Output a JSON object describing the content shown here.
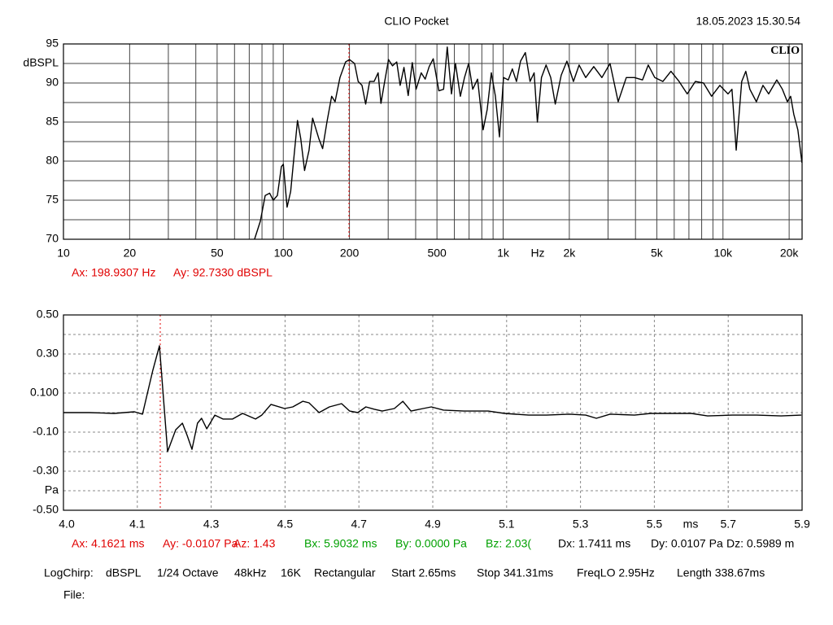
{
  "header": {
    "title": "CLIO Pocket",
    "timestamp": "18.05.2023 15.30.54"
  },
  "chart_data": [
    {
      "type": "line",
      "logo": "CLIO",
      "ylabel": "dBSPL",
      "xlabel": "Hz",
      "xlog": true,
      "grid": true,
      "grid_style": "solid",
      "minor_grid": true,
      "xlim": [
        10,
        22900
      ],
      "xticks": [
        10,
        20,
        50,
        100,
        200,
        500,
        {
          "value": 1000,
          "label": "1k"
        },
        {
          "value": 2000,
          "label": "2k"
        },
        {
          "value": 5000,
          "label": "5k"
        },
        {
          "value": 10000,
          "label": "10k"
        },
        {
          "value": 20000,
          "label": "20k"
        }
      ],
      "ylim": [
        70,
        95
      ],
      "yticks": [
        70,
        75,
        80,
        85,
        90,
        95
      ],
      "cursor_x": 198.9307,
      "cursor_color": "#e00000",
      "cursor_readouts": [
        {
          "text": "Ax: 198.9307 Hz",
          "color": "#e00000"
        },
        {
          "text": "Ay: 92.7330 dBSPL",
          "color": "#e00000"
        }
      ],
      "x": [
        74,
        78.6,
        82.7,
        86.7,
        90,
        94,
        98,
        100,
        104,
        108,
        112,
        116,
        120,
        125,
        131,
        136,
        145,
        151,
        158,
        166,
        172,
        181,
        192,
        200,
        211,
        219,
        228,
        237,
        247,
        259,
        270,
        278,
        288,
        301,
        314,
        328,
        340,
        354,
        370,
        386,
        402,
        424,
        442,
        461,
        481,
        510,
        536,
        557,
        582,
        607,
        639,
        667,
        697,
        727,
        765,
        811,
        846,
        884,
        922,
        962,
        1004,
        1055,
        1101,
        1150,
        1200,
        1262,
        1326,
        1384,
        1431,
        1494,
        1568,
        1646,
        1727,
        1837,
        1950,
        2088,
        2217,
        2374,
        2584,
        2813,
        3063,
        3335,
        3631,
        3954,
        4305,
        4573,
        4894,
        5328,
        5801,
        6316,
        6877,
        7487,
        8151,
        8875,
        9680,
        10540,
        10990,
        11480,
        12170,
        12700,
        13250,
        14190,
        15200,
        16130,
        17570,
        18640,
        19620,
        20300,
        20990,
        21900,
        22860
      ],
      "series": [
        {
          "color": "#000000",
          "values": [
            70,
            72.3,
            75.6,
            75.9,
            75,
            75.6,
            79.3,
            79.6,
            74.1,
            76.1,
            80.8,
            85.2,
            82.9,
            78.8,
            81.4,
            85.5,
            82.9,
            81.6,
            85,
            88.3,
            87.6,
            90.7,
            92.7,
            93,
            92.5,
            90.2,
            89.7,
            87.3,
            90.2,
            90.2,
            91.3,
            87.4,
            89.9,
            93,
            92.2,
            92.7,
            89.7,
            92,
            88.4,
            92.6,
            89.2,
            91.3,
            90.5,
            92.1,
            93.1,
            89,
            89.2,
            94.6,
            88.6,
            92.5,
            88.3,
            90.7,
            92.5,
            89.2,
            90.5,
            84,
            86.6,
            91.3,
            88.3,
            83.1,
            90.7,
            90.4,
            91.8,
            90.2,
            92.8,
            93.9,
            90.2,
            91.3,
            85,
            90.7,
            92.3,
            90.7,
            87.3,
            91,
            92.8,
            90.2,
            92.3,
            90.7,
            92.1,
            90.7,
            92.5,
            87.6,
            90.7,
            90.7,
            90.4,
            92.3,
            90.7,
            90.2,
            91.5,
            90.2,
            88.6,
            90.2,
            90,
            88.3,
            89.7,
            88.6,
            89.2,
            81.4,
            90.2,
            91.5,
            89.2,
            87.6,
            89.7,
            88.6,
            90.4,
            89.2,
            87.6,
            88.3,
            86,
            84,
            79.8
          ]
        }
      ]
    },
    {
      "type": "line",
      "ylabel": "Pa",
      "xlabel": "ms",
      "axis_start_label": "4.0",
      "grid": true,
      "grid_style": "dashed",
      "minor_grid": true,
      "xlim": [
        3.9,
        5.9
      ],
      "xticks": [
        4.1,
        4.3,
        4.5,
        4.7,
        4.9,
        5.1,
        5.3,
        5.5,
        5.7,
        5.9
      ],
      "ylim": [
        -0.5,
        0.5
      ],
      "yticks": [
        {
          "value": 0.5,
          "label": "0.50"
        },
        {
          "value": 0.3,
          "label": "0.30"
        },
        {
          "value": 0.1,
          "label": "0.100"
        },
        {
          "value": -0.1,
          "label": "-0.10"
        },
        {
          "value": -0.3,
          "label": "-0.30"
        },
        {
          "value": -0.5,
          "label": "-0.50"
        }
      ],
      "cursor_x": 4.1621,
      "cursor_color": "#e00000",
      "cursor_readouts": [
        {
          "text": "Ax: 4.1621 ms",
          "color": "#e00000"
        },
        {
          "text": "Ay: -0.0107 Pa",
          "color": "#e00000"
        },
        {
          "text": "Az: 1.43",
          "color": "#e00000"
        },
        {
          "text": "Bx: 5.9032 ms",
          "color": "#00a000"
        },
        {
          "text": "By: 0.0000 Pa",
          "color": "#00a000"
        },
        {
          "text": "Bz: 2.03(",
          "color": "#00a000"
        },
        {
          "text": "Dx: 1.7411 ms",
          "color": "#000000"
        },
        {
          "text": "Dy: 0.0107 Pa",
          "color": "#000000"
        },
        {
          "text": "Dz: 0.5989 m",
          "color": "#000000"
        }
      ],
      "x": [
        3.9,
        3.97,
        4.037,
        4.092,
        4.114,
        4.129,
        4.142,
        4.16,
        4.182,
        4.204,
        4.222,
        4.235,
        4.248,
        4.263,
        4.274,
        4.288,
        4.31,
        4.332,
        4.358,
        4.385,
        4.42,
        4.437,
        4.462,
        4.499,
        4.521,
        4.548,
        4.565,
        4.592,
        4.62,
        4.653,
        4.675,
        4.697,
        4.719,
        4.742,
        4.763,
        4.796,
        4.819,
        4.841,
        4.874,
        4.896,
        4.929,
        4.984,
        5.05,
        5.094,
        5.16,
        5.208,
        5.27,
        5.314,
        5.343,
        5.38,
        5.446,
        5.49,
        5.534,
        5.6,
        5.644,
        5.711,
        5.777,
        5.843,
        5.898
      ],
      "series": [
        {
          "color": "#000000",
          "values": [
            0,
            0,
            -0.004,
            0.004,
            -0.008,
            0.113,
            0.217,
            0.342,
            -0.2,
            -0.088,
            -0.054,
            -0.117,
            -0.188,
            -0.054,
            -0.029,
            -0.083,
            -0.013,
            -0.033,
            -0.033,
            -0.004,
            -0.033,
            -0.013,
            0.042,
            0.021,
            0.029,
            0.058,
            0.05,
            0,
            0.029,
            0.046,
            0.008,
            0,
            0.029,
            0.017,
            0.008,
            0.021,
            0.058,
            0.008,
            0.021,
            0.029,
            0.013,
            0.008,
            0.008,
            -0.004,
            -0.013,
            -0.013,
            -0.008,
            -0.013,
            -0.029,
            -0.008,
            -0.013,
            -0.004,
            -0.004,
            -0.004,
            -0.017,
            -0.013,
            -0.013,
            -0.017,
            -0.013
          ]
        }
      ]
    }
  ],
  "settings": [
    "LogChirp:",
    "dBSPL",
    "1/24 Octave",
    "48kHz",
    "16K",
    "Rectangular",
    "Start 2.65ms",
    "Stop 341.31ms",
    "FreqLO 2.95Hz",
    "Length 338.67ms"
  ],
  "file_label": "File:"
}
